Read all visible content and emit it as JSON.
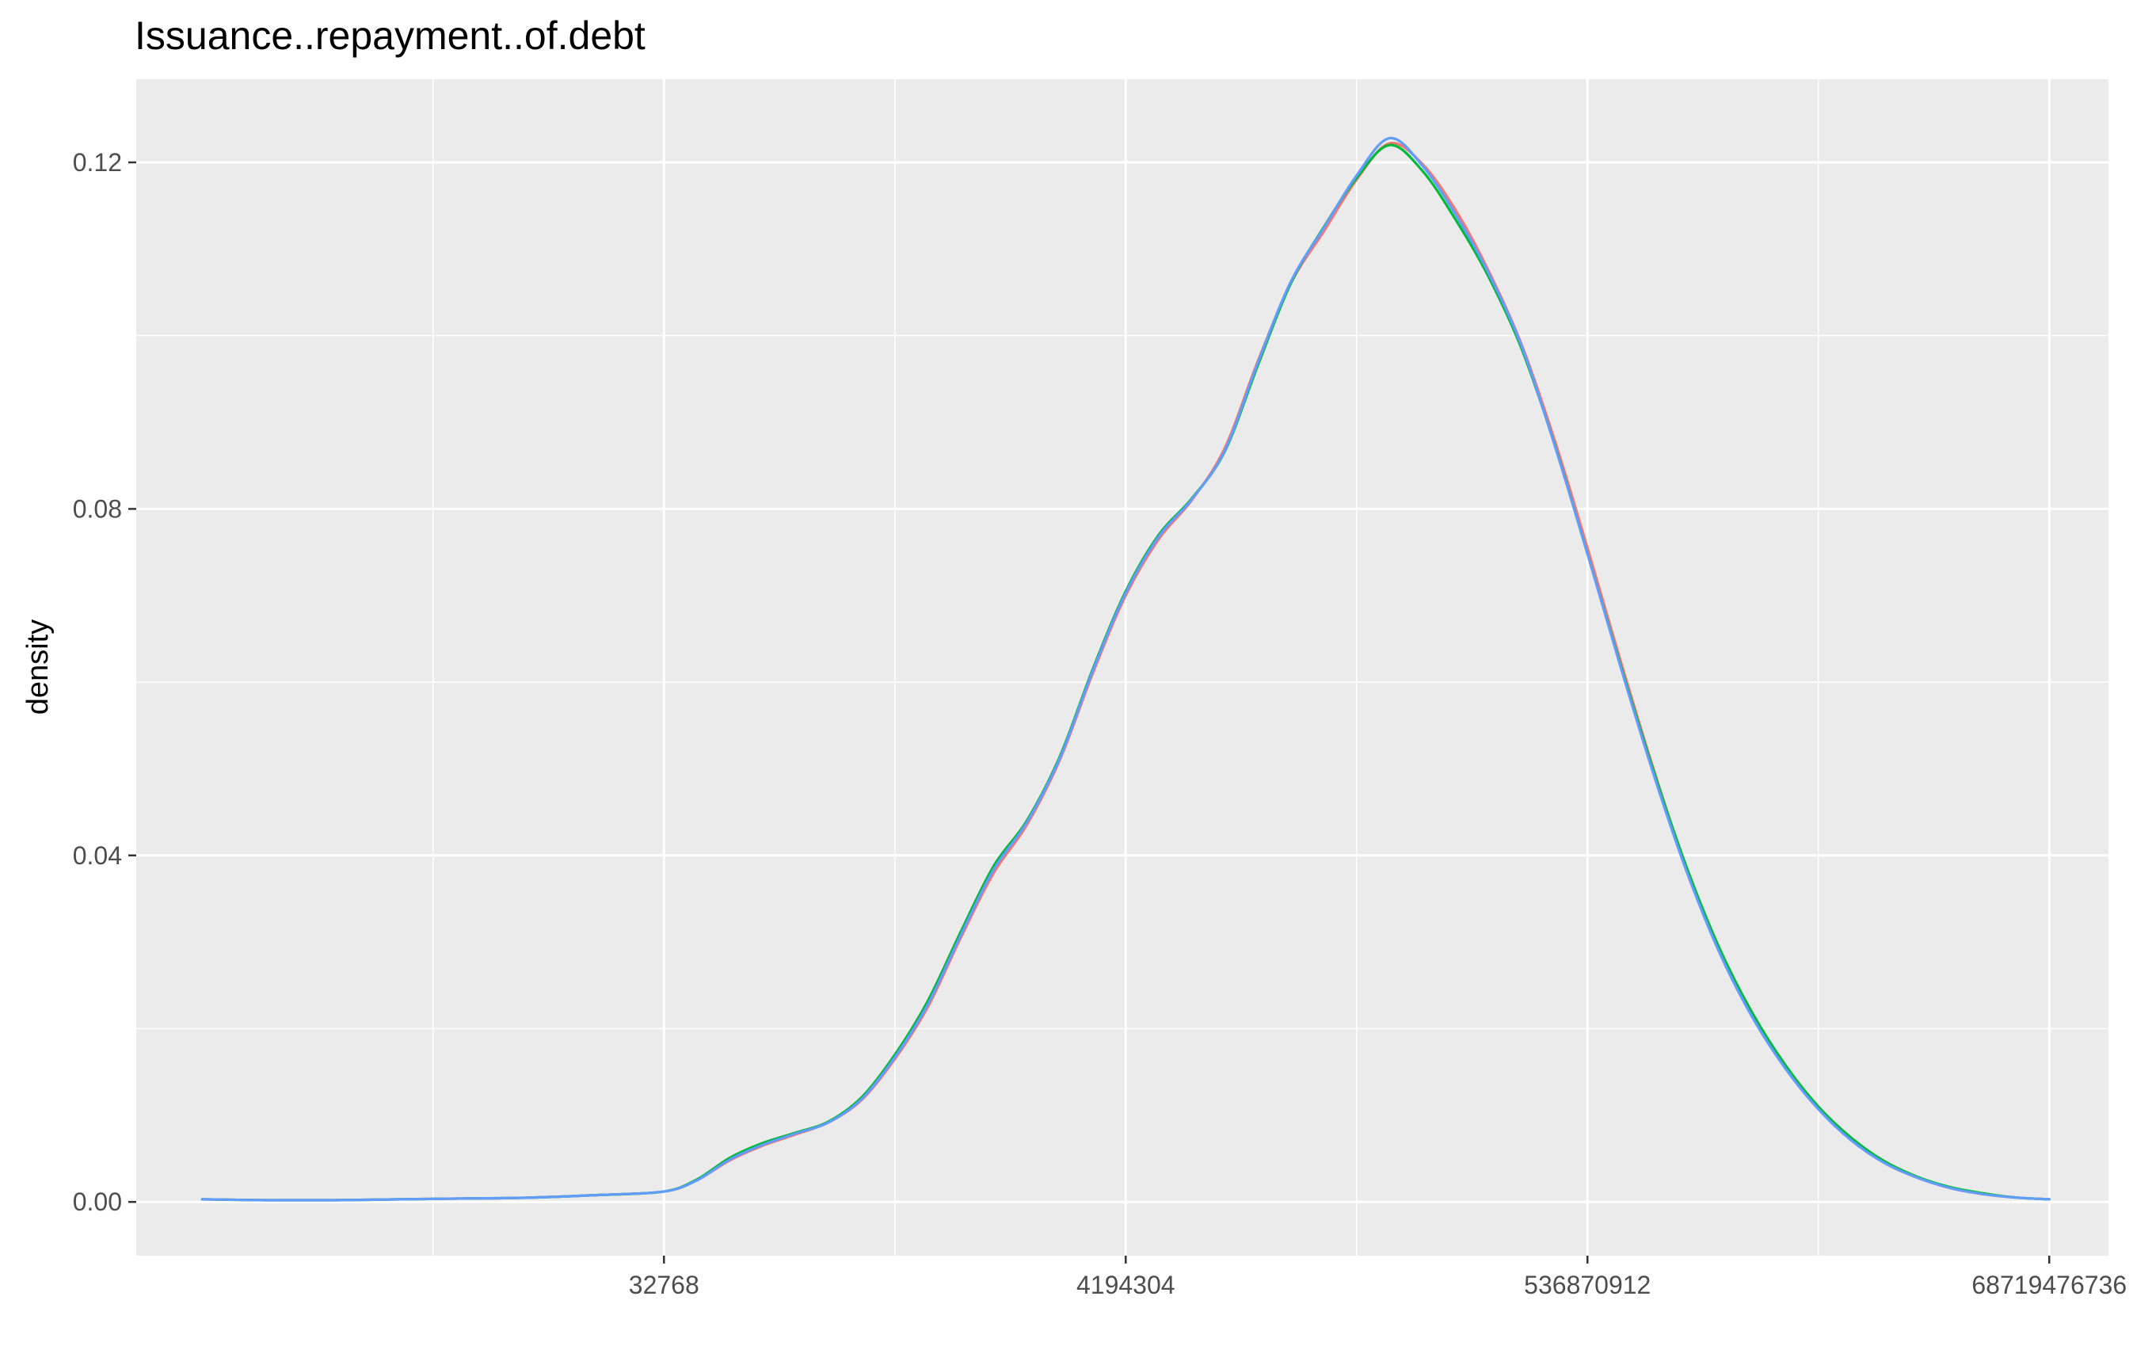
{
  "chart_data": {
    "type": "line",
    "title": "Issuance..repayment..of.debt",
    "xlabel": "",
    "ylabel": "density",
    "x_scale": "log2",
    "x_ticks": [
      {
        "value": 32768,
        "label": "32768"
      },
      {
        "value": 4194304,
        "label": "4194304"
      },
      {
        "value": 536870912,
        "label": "536870912"
      },
      {
        "value": 68719476736,
        "label": "68719476736"
      }
    ],
    "y_ticks": [
      {
        "value": 0.0,
        "label": "0.00"
      },
      {
        "value": 0.04,
        "label": "0.04"
      },
      {
        "value": 0.08,
        "label": "0.08"
      },
      {
        "value": 0.12,
        "label": "0.12"
      }
    ],
    "xlim": [
      128,
      128000000000
    ],
    "ylim": [
      -0.0062,
      0.1296
    ],
    "grid": true,
    "legend": "none",
    "x": [
      256,
      512,
      1024,
      2048,
      4096,
      8192,
      16384,
      32768,
      46341,
      65536,
      92682,
      131072,
      185364,
      262144,
      370728,
      524288,
      741455,
      1048576,
      1482910,
      2097152,
      2965820,
      4194304,
      5931641,
      8388608,
      11863283,
      16777216,
      23726566,
      33554432,
      47453133,
      67108864,
      94906265,
      134217728,
      189812531,
      268435456,
      379625062,
      536870912,
      759250125,
      1073741824,
      1518500250,
      2147483648,
      3037000500,
      4294967296,
      6074001000,
      8589934592,
      12148002000,
      17179869184,
      24296004000,
      34359738368,
      48592008000,
      68719476736
    ],
    "series": [
      {
        "color": "#f8766d",
        "values": [
          0.0003,
          0.0002,
          0.0002,
          0.0003,
          0.0004,
          0.0005,
          0.0008,
          0.0012,
          0.0025,
          0.0048,
          0.0065,
          0.0078,
          0.0092,
          0.0118,
          0.0165,
          0.0225,
          0.0305,
          0.038,
          0.0435,
          0.051,
          0.061,
          0.07,
          0.0765,
          0.081,
          0.087,
          0.097,
          0.106,
          0.112,
          0.118,
          0.1222,
          0.1198,
          0.1145,
          0.1075,
          0.099,
          0.088,
          0.0755,
          0.0625,
          0.05,
          0.0385,
          0.029,
          0.0215,
          0.0155,
          0.0108,
          0.0072,
          0.0045,
          0.0028,
          0.0016,
          0.0009,
          0.0005,
          0.0003
        ]
      },
      {
        "color": "#00ba38",
        "values": [
          0.0003,
          0.0002,
          0.0002,
          0.0003,
          0.0004,
          0.0005,
          0.0008,
          0.0012,
          0.0026,
          0.0051,
          0.0068,
          0.008,
          0.0093,
          0.0121,
          0.017,
          0.0232,
          0.0312,
          0.0388,
          0.044,
          0.0514,
          0.0615,
          0.0705,
          0.077,
          0.0812,
          0.0866,
          0.0965,
          0.106,
          0.1125,
          0.1182,
          0.122,
          0.119,
          0.1134,
          0.1068,
          0.0985,
          0.0875,
          0.0748,
          0.062,
          0.0498,
          0.0387,
          0.0293,
          0.0218,
          0.0158,
          0.011,
          0.0074,
          0.0047,
          0.0029,
          0.0017,
          0.001,
          0.0005,
          0.0003
        ]
      },
      {
        "color": "#619cff",
        "values": [
          0.0003,
          0.0002,
          0.0002,
          0.0003,
          0.0004,
          0.0005,
          0.0008,
          0.0012,
          0.0025,
          0.0049,
          0.0066,
          0.0079,
          0.0092,
          0.0119,
          0.0167,
          0.0228,
          0.0308,
          0.0384,
          0.0438,
          0.0512,
          0.0613,
          0.0703,
          0.0768,
          0.0811,
          0.0867,
          0.0968,
          0.1062,
          0.1124,
          0.1185,
          0.1228,
          0.1196,
          0.114,
          0.1072,
          0.0988,
          0.0874,
          0.0748,
          0.0618,
          0.0494,
          0.0382,
          0.0288,
          0.0213,
          0.0154,
          0.0107,
          0.0071,
          0.0045,
          0.0028,
          0.0016,
          0.0009,
          0.0005,
          0.0003
        ]
      }
    ]
  }
}
